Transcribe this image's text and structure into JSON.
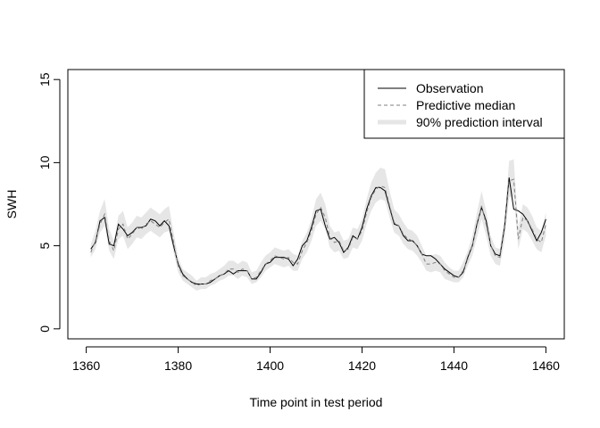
{
  "chart_data": {
    "type": "line",
    "title": "",
    "xlabel": "Time point in test period",
    "ylabel": "SWH",
    "xlim": [
      1356,
      1464
    ],
    "ylim": [
      -0.6,
      15.6
    ],
    "xticks": [
      1360,
      1380,
      1400,
      1420,
      1440,
      1460
    ],
    "yticks": [
      0,
      5,
      10,
      15
    ],
    "grid": false,
    "legend_position": "top-right",
    "legend": [
      "Observation",
      "Predictive median",
      "90% prediction interval"
    ],
    "series": [
      {
        "name": "Observation",
        "style": "solid",
        "color": "#000000",
        "x": [
          1361,
          1362,
          1363,
          1364,
          1365,
          1366,
          1367,
          1368,
          1369,
          1370,
          1371,
          1372,
          1373,
          1374,
          1375,
          1376,
          1377,
          1378,
          1379,
          1380,
          1381,
          1382,
          1383,
          1384,
          1385,
          1386,
          1387,
          1388,
          1389,
          1390,
          1391,
          1392,
          1393,
          1394,
          1395,
          1396,
          1397,
          1398,
          1399,
          1400,
          1401,
          1402,
          1403,
          1404,
          1405,
          1406,
          1407,
          1408,
          1409,
          1410,
          1411,
          1412,
          1413,
          1414,
          1415,
          1416,
          1417,
          1418,
          1419,
          1420,
          1421,
          1422,
          1423,
          1424,
          1425,
          1426,
          1427,
          1428,
          1429,
          1430,
          1431,
          1432,
          1433,
          1434,
          1435,
          1436,
          1437,
          1438,
          1439,
          1440,
          1441,
          1442,
          1443,
          1444,
          1445,
          1446,
          1447,
          1448,
          1449,
          1450,
          1451,
          1452,
          1453,
          1454,
          1455,
          1456,
          1457,
          1458,
          1459,
          1460
        ],
        "y": [
          4.8,
          5.2,
          6.5,
          6.7,
          5.1,
          5.0,
          6.3,
          6.0,
          5.6,
          5.8,
          6.1,
          6.1,
          6.2,
          6.6,
          6.5,
          6.2,
          6.5,
          6.2,
          5.0,
          3.9,
          3.3,
          3.0,
          2.8,
          2.7,
          2.7,
          2.7,
          2.8,
          3.0,
          3.2,
          3.3,
          3.5,
          3.3,
          3.5,
          3.5,
          3.5,
          3.0,
          3.0,
          3.4,
          3.9,
          4.0,
          4.3,
          4.3,
          4.3,
          4.2,
          3.8,
          4.2,
          5.0,
          5.3,
          6.1,
          7.1,
          7.2,
          6.2,
          5.4,
          5.5,
          5.2,
          4.6,
          4.9,
          5.6,
          5.4,
          6.1,
          7.2,
          8.0,
          8.5,
          8.5,
          8.3,
          7.3,
          6.3,
          6.2,
          5.6,
          5.3,
          5.3,
          5.0,
          4.5,
          4.4,
          4.4,
          4.2,
          3.9,
          3.6,
          3.4,
          3.2,
          3.1,
          3.4,
          4.3,
          5.0,
          6.3,
          7.3,
          6.5,
          5.0,
          4.5,
          4.4,
          6.1,
          9.1,
          7.2,
          7.1,
          6.9,
          6.5,
          5.9,
          5.3,
          5.8,
          6.6
        ]
      },
      {
        "name": "Predictive median",
        "style": "dashed",
        "color": "#7f7f7f",
        "x": [
          1361,
          1362,
          1363,
          1364,
          1365,
          1366,
          1367,
          1368,
          1369,
          1370,
          1371,
          1372,
          1373,
          1374,
          1375,
          1376,
          1377,
          1378,
          1379,
          1380,
          1381,
          1382,
          1383,
          1384,
          1385,
          1386,
          1387,
          1388,
          1389,
          1390,
          1391,
          1392,
          1393,
          1394,
          1395,
          1396,
          1397,
          1398,
          1399,
          1400,
          1401,
          1402,
          1403,
          1404,
          1405,
          1406,
          1407,
          1408,
          1409,
          1410,
          1411,
          1412,
          1413,
          1414,
          1415,
          1416,
          1417,
          1418,
          1419,
          1420,
          1421,
          1422,
          1423,
          1424,
          1425,
          1426,
          1427,
          1428,
          1429,
          1430,
          1431,
          1432,
          1433,
          1434,
          1435,
          1436,
          1437,
          1438,
          1439,
          1440,
          1441,
          1442,
          1443,
          1444,
          1445,
          1446,
          1447,
          1448,
          1449,
          1450,
          1451,
          1452,
          1453,
          1454,
          1455,
          1456,
          1457,
          1458,
          1459,
          1460
        ],
        "y": [
          4.6,
          5.3,
          6.3,
          6.9,
          5.3,
          4.7,
          6.0,
          6.3,
          5.4,
          5.7,
          6.1,
          6.0,
          6.3,
          6.5,
          6.3,
          6.1,
          6.4,
          6.6,
          5.2,
          3.8,
          3.2,
          3.0,
          2.8,
          2.6,
          2.7,
          2.7,
          2.9,
          3.0,
          3.2,
          3.3,
          3.6,
          3.6,
          3.4,
          3.6,
          3.5,
          3.0,
          3.1,
          3.5,
          3.9,
          4.1,
          4.4,
          4.3,
          4.2,
          4.3,
          4.0,
          3.9,
          4.7,
          5.2,
          5.9,
          6.9,
          7.3,
          6.7,
          5.5,
          5.2,
          5.3,
          4.7,
          4.8,
          5.5,
          5.4,
          5.9,
          7.0,
          7.9,
          8.4,
          8.6,
          8.5,
          7.4,
          6.4,
          6.2,
          5.7,
          5.4,
          5.3,
          5.0,
          4.5,
          3.9,
          3.9,
          4.0,
          3.9,
          3.5,
          3.3,
          3.1,
          3.1,
          3.5,
          4.2,
          5.0,
          6.2,
          7.4,
          6.3,
          5.0,
          4.4,
          4.3,
          6.0,
          8.9,
          9.0,
          5.4,
          6.7,
          6.5,
          6.0,
          5.4,
          5.2,
          6.3
        ]
      }
    ],
    "interval": {
      "name": "90% prediction interval",
      "color": "#e6e6e6",
      "x": [
        1361,
        1362,
        1363,
        1364,
        1365,
        1366,
        1367,
        1368,
        1369,
        1370,
        1371,
        1372,
        1373,
        1374,
        1375,
        1376,
        1377,
        1378,
        1379,
        1380,
        1381,
        1382,
        1383,
        1384,
        1385,
        1386,
        1387,
        1388,
        1389,
        1390,
        1391,
        1392,
        1393,
        1394,
        1395,
        1396,
        1397,
        1398,
        1399,
        1400,
        1401,
        1402,
        1403,
        1404,
        1405,
        1406,
        1407,
        1408,
        1409,
        1410,
        1411,
        1412,
        1413,
        1414,
        1415,
        1416,
        1417,
        1418,
        1419,
        1420,
        1421,
        1422,
        1423,
        1424,
        1425,
        1426,
        1427,
        1428,
        1429,
        1430,
        1431,
        1432,
        1433,
        1434,
        1435,
        1436,
        1437,
        1438,
        1439,
        1440,
        1441,
        1442,
        1443,
        1444,
        1445,
        1446,
        1447,
        1448,
        1449,
        1450,
        1451,
        1452,
        1453,
        1454,
        1455,
        1456,
        1457,
        1458,
        1459,
        1460
      ],
      "lower": [
        4.3,
        4.8,
        5.8,
        6.2,
        4.7,
        4.2,
        5.4,
        5.6,
        4.8,
        5.1,
        5.5,
        5.4,
        5.7,
        5.9,
        5.7,
        5.5,
        5.8,
        5.9,
        4.6,
        3.4,
        2.9,
        2.7,
        2.5,
        2.3,
        2.4,
        2.4,
        2.6,
        2.7,
        2.9,
        3.0,
        3.2,
        3.2,
        3.0,
        3.2,
        3.1,
        2.7,
        2.8,
        3.1,
        3.5,
        3.7,
        3.9,
        3.8,
        3.7,
        3.8,
        3.5,
        3.5,
        4.2,
        4.6,
        5.3,
        6.2,
        6.5,
        6.0,
        4.9,
        4.6,
        4.7,
        4.2,
        4.3,
        4.9,
        4.8,
        5.3,
        6.3,
        7.1,
        7.6,
        7.8,
        7.7,
        6.7,
        5.8,
        5.6,
        5.1,
        4.8,
        4.7,
        4.4,
        4.0,
        3.5,
        3.4,
        3.5,
        3.4,
        3.0,
        2.9,
        2.8,
        2.8,
        3.1,
        3.8,
        4.4,
        5.5,
        6.6,
        5.6,
        4.4,
        3.9,
        3.8,
        5.3,
        7.9,
        8.0,
        4.8,
        6.0,
        5.8,
        5.3,
        4.8,
        4.6,
        5.6
      ],
      "upper": [
        5.1,
        5.9,
        7.1,
        7.8,
        6.0,
        5.3,
        6.8,
        7.1,
        6.1,
        6.4,
        6.8,
        6.7,
        7.0,
        7.3,
        7.1,
        6.9,
        7.2,
        7.4,
        5.8,
        4.3,
        3.6,
        3.4,
        3.2,
        2.9,
        3.1,
        3.1,
        3.3,
        3.4,
        3.6,
        3.8,
        4.1,
        4.1,
        3.9,
        4.1,
        4.0,
        3.4,
        3.5,
        4.0,
        4.4,
        4.6,
        4.9,
        4.8,
        4.7,
        4.8,
        4.5,
        4.4,
        5.3,
        5.8,
        6.6,
        7.8,
        8.2,
        7.5,
        6.2,
        5.8,
        5.9,
        5.3,
        5.4,
        6.1,
        6.0,
        6.6,
        7.8,
        8.8,
        9.4,
        9.7,
        9.6,
        8.3,
        7.2,
        6.9,
        6.4,
        6.0,
        5.9,
        5.6,
        5.0,
        4.4,
        4.4,
        4.5,
        4.4,
        4.0,
        3.7,
        3.5,
        3.5,
        4.0,
        4.7,
        5.6,
        7.0,
        8.3,
        7.1,
        5.6,
        4.9,
        4.8,
        6.7,
        10.1,
        10.2,
        6.1,
        7.5,
        7.3,
        6.8,
        6.1,
        5.9,
        7.0
      ]
    }
  }
}
